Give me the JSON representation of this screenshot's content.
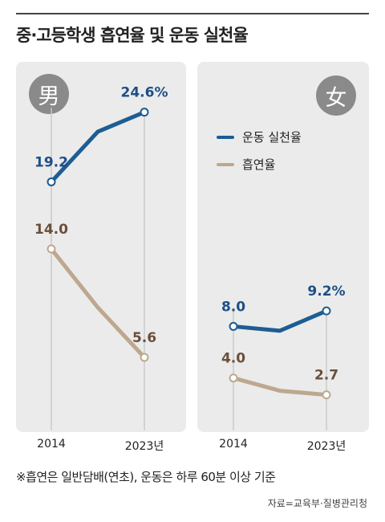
{
  "title": "중·고등학생 흡연율 및 운동 실천율",
  "colors": {
    "exercise": "#1d5d93",
    "smoking": "#bda88e",
    "exercise_label": "#1d4f86",
    "smoking_label": "#6b4f3a",
    "badge": "#8a8a8a",
    "panel": "#ebebeb",
    "guide": "#c8c8c8"
  },
  "legend": [
    {
      "name": "운동 실천율",
      "color": "#1d5d93"
    },
    {
      "name": "흡연율",
      "color": "#bda88e"
    }
  ],
  "x_ticks": [
    "2014",
    "2023년"
  ],
  "footnote": "※흡연은 일반담배(연초), 운동은 하루 60분 이상 기준",
  "source": "자료=교육부·질병관리청",
  "chart_data": [
    {
      "type": "line",
      "badge": "男",
      "x": [
        "2014",
        "2023년"
      ],
      "series": [
        {
          "name": "운동 실천율",
          "values": [
            19.2,
            24.6
          ],
          "labels": [
            "19.2",
            "24.6%"
          ]
        },
        {
          "name": "흡연율",
          "values": [
            14.0,
            5.6
          ],
          "labels": [
            "14.0",
            "5.6"
          ]
        }
      ]
    },
    {
      "type": "line",
      "badge": "女",
      "x": [
        "2014",
        "2023년"
      ],
      "series": [
        {
          "name": "운동 실천율",
          "values": [
            8.0,
            9.2
          ],
          "labels": [
            "8.0",
            "9.2%"
          ]
        },
        {
          "name": "흡연율",
          "values": [
            4.0,
            2.7
          ],
          "labels": [
            "4.0",
            "2.7"
          ]
        }
      ]
    }
  ]
}
